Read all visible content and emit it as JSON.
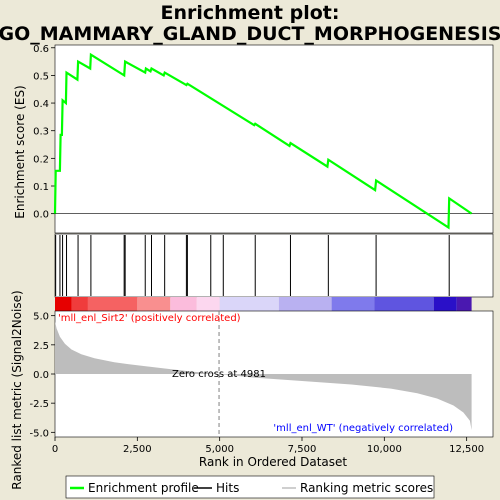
{
  "chart_data": {
    "type": "line",
    "title_line1": "Enrichment plot:",
    "title_line2": "GO_MAMMARY_GLAND_DUCT_MORPHOGENESIS",
    "top_panel": {
      "ylabel": "Enrichment score (ES)",
      "ylim": [
        -0.07,
        0.61
      ],
      "yticks": [
        0.0,
        0.1,
        0.2,
        0.3,
        0.4,
        0.5,
        0.6
      ],
      "ytick_labels": [
        "0.0",
        "0.1",
        "0.2",
        "0.3",
        "0.4",
        "0.5",
        "0.6"
      ],
      "line_color": "#00ff00",
      "es_points": [
        [
          0,
          0.0
        ],
        [
          20,
          0.155
        ],
        [
          150,
          0.155
        ],
        [
          170,
          0.285
        ],
        [
          210,
          0.285
        ],
        [
          230,
          0.41
        ],
        [
          330,
          0.4
        ],
        [
          350,
          0.51
        ],
        [
          680,
          0.485
        ],
        [
          700,
          0.55
        ],
        [
          1070,
          0.525
        ],
        [
          1090,
          0.575
        ],
        [
          2100,
          0.5
        ],
        [
          2130,
          0.55
        ],
        [
          2740,
          0.51
        ],
        [
          2760,
          0.525
        ],
        [
          2900,
          0.515
        ],
        [
          2930,
          0.525
        ],
        [
          3300,
          0.5
        ],
        [
          3330,
          0.51
        ],
        [
          3990,
          0.465
        ],
        [
          4020,
          0.47
        ],
        [
          6050,
          0.32
        ],
        [
          6080,
          0.325
        ],
        [
          7120,
          0.245
        ],
        [
          7150,
          0.255
        ],
        [
          8270,
          0.17
        ],
        [
          8300,
          0.195
        ],
        [
          9720,
          0.085
        ],
        [
          9750,
          0.12
        ],
        [
          11950,
          -0.05
        ],
        [
          11970,
          0.055
        ],
        [
          12650,
          0.0
        ]
      ]
    },
    "hits": [
      20,
      150,
      230,
      350,
      700,
      1090,
      2100,
      2130,
      2740,
      2930,
      3330,
      3990,
      4020,
      4730,
      5110,
      6080,
      7150,
      8300,
      9750,
      11970
    ],
    "bottom_panel": {
      "ylabel": "Ranked list metric (Signal2Noise)",
      "ylim": [
        -5.4,
        5.4
      ],
      "yticks": [
        5.0,
        2.5,
        0.0,
        -2.5,
        -5.0
      ],
      "ytick_labels": [
        "5.0",
        "2.5",
        "0.0",
        "-2.5",
        "-5.0"
      ],
      "zero_cross_rank": 4981,
      "zero_cross_label": "Zero cross at 4981",
      "pos_label": "'mll_enl_Sirt2' (positively correlated)",
      "neg_label": "'mll_enl_WT' (negatively correlated)",
      "metric_points": [
        [
          0,
          4.5
        ],
        [
          50,
          3.9
        ],
        [
          150,
          3.2
        ],
        [
          300,
          2.6
        ],
        [
          500,
          2.1
        ],
        [
          800,
          1.7
        ],
        [
          1200,
          1.35
        ],
        [
          1800,
          1.0
        ],
        [
          2500,
          0.75
        ],
        [
          3300,
          0.48
        ],
        [
          4200,
          0.2
        ],
        [
          4981,
          0.0
        ],
        [
          6000,
          -0.3
        ],
        [
          7500,
          -0.6
        ],
        [
          9000,
          -0.9
        ],
        [
          10200,
          -1.25
        ],
        [
          11000,
          -1.65
        ],
        [
          11600,
          -2.1
        ],
        [
          12100,
          -2.7
        ],
        [
          12400,
          -3.3
        ],
        [
          12600,
          -4.0
        ],
        [
          12650,
          -4.8
        ]
      ]
    },
    "xlabel": "Rank in Ordered Dataset",
    "xlim": [
      0,
      13300
    ],
    "xticks": [
      0,
      2500,
      5000,
      7500,
      10000,
      12500
    ],
    "xtick_labels": [
      "0",
      "2,500",
      "5,000",
      "7,500",
      "10,000",
      "12,500"
    ],
    "n_genes": 12650,
    "colorbar": {
      "segments": [
        {
          "end": 500,
          "color": "#e60000"
        },
        {
          "end": 1000,
          "color": "#f03c3c"
        },
        {
          "end": 2500,
          "color": "#f56262"
        },
        {
          "end": 3500,
          "color": "#f98f8f"
        },
        {
          "end": 4300,
          "color": "#fbbcdc"
        },
        {
          "end": 5000,
          "color": "#fcd7ef"
        },
        {
          "end": 6800,
          "color": "#dad6f9"
        },
        {
          "end": 8400,
          "color": "#b9b1f1"
        },
        {
          "end": 9700,
          "color": "#7f7aec"
        },
        {
          "end": 11500,
          "color": "#5f55e0"
        },
        {
          "end": 12200,
          "color": "#2a10c8"
        },
        {
          "end": 12650,
          "color": "#4a18b0"
        }
      ]
    },
    "legend": [
      {
        "label": "Enrichment profile",
        "color": "#00ff00",
        "kind": "line"
      },
      {
        "label": "Hits",
        "color": "#000000",
        "kind": "line"
      },
      {
        "label": "Ranking metric scores",
        "color": "#bfbfbf",
        "kind": "line"
      }
    ]
  }
}
